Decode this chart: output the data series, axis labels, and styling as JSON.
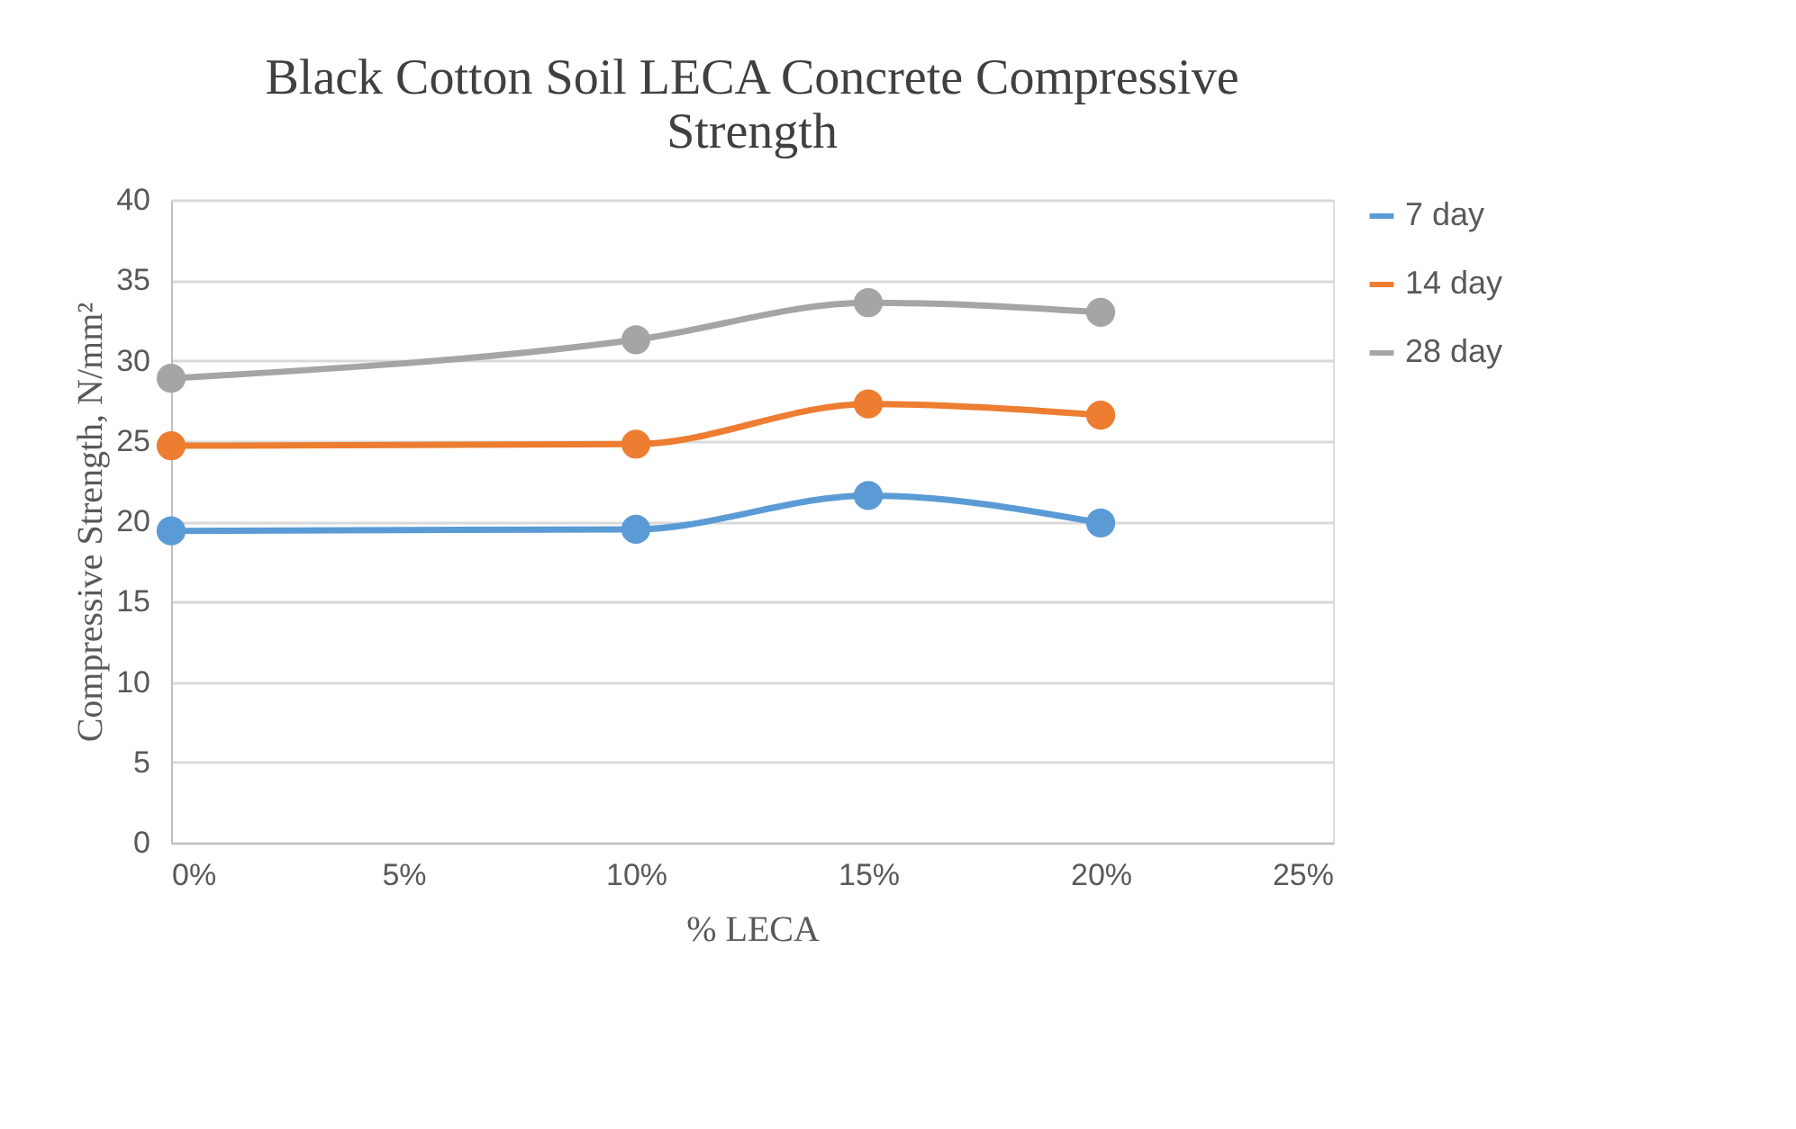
{
  "chart_data": {
    "type": "line",
    "title": "Black Cotton Soil LECA Concrete Compressive Strength",
    "xlabel": "% LECA",
    "ylabel": "Compressive Strength, N/mm²",
    "x": [
      0,
      10,
      15,
      20
    ],
    "series": [
      {
        "name": "7 day",
        "color": "#5b9bd5",
        "values": [
          19.4,
          19.5,
          21.6,
          19.9
        ]
      },
      {
        "name": "14 day",
        "color": "#ed7d31",
        "values": [
          24.7,
          24.8,
          27.3,
          26.6
        ]
      },
      {
        "name": "28 day",
        "color": "#a5a5a5",
        "values": [
          28.9,
          31.3,
          33.6,
          33.0
        ]
      }
    ],
    "xlim": [
      0,
      25
    ],
    "xticks": [
      {
        "value": 0,
        "label": "0%"
      },
      {
        "value": 5,
        "label": "5%"
      },
      {
        "value": 10,
        "label": "10%"
      },
      {
        "value": 15,
        "label": "15%"
      },
      {
        "value": 20,
        "label": "20%"
      },
      {
        "value": 25,
        "label": "25%"
      }
    ],
    "ylim": [
      0,
      40
    ],
    "yticks": [
      0,
      5,
      10,
      15,
      20,
      25,
      30,
      35,
      40
    ],
    "grid": "y",
    "legend": "right",
    "marker": "circle",
    "line_style": "solid"
  }
}
